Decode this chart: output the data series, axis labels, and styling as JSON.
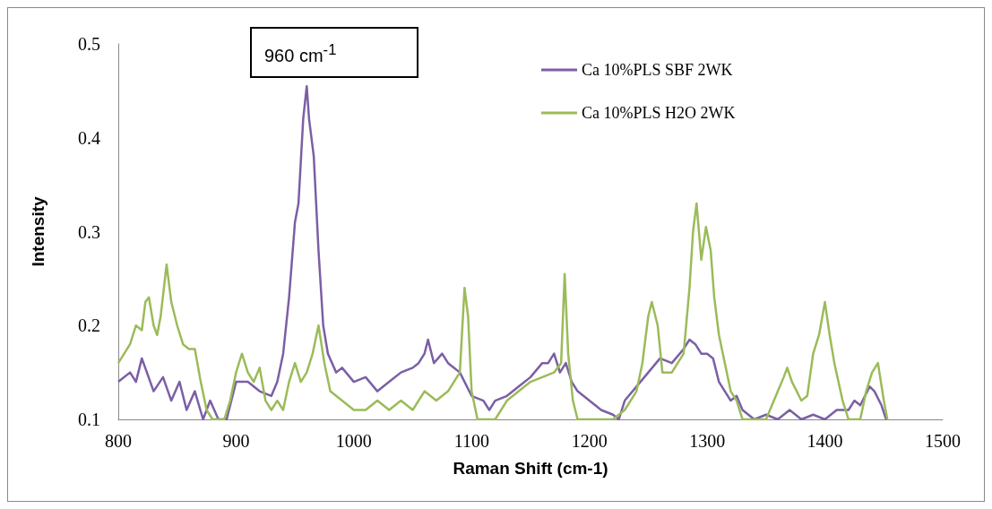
{
  "chart_data": {
    "type": "line",
    "xlabel": "Raman Shift (cm-1)",
    "ylabel": "Intensity",
    "xlim": [
      800,
      1500
    ],
    "xticks": [
      800,
      900,
      1000,
      1100,
      1200,
      1300,
      1400,
      1500
    ],
    "ylim": [
      0.1,
      0.5
    ],
    "yticks": [
      0.1,
      0.2,
      0.3,
      0.4,
      0.5
    ],
    "grid": false,
    "legend": "top right",
    "marker": "none",
    "line_style": "solid",
    "annotations": [
      "960 cm$^{-1}$"
    ],
    "series": [
      {
        "name": "Ca 10%PLS SBF 2WK",
        "color": "#7b5fa5",
        "x": [
          800,
          810,
          815,
          820,
          830,
          838,
          845,
          852,
          858,
          865,
          872,
          878,
          885,
          892,
          900,
          910,
          920,
          930,
          935,
          940,
          945,
          950,
          953,
          957,
          960,
          962,
          966,
          970,
          974,
          978,
          985,
          990,
          1000,
          1010,
          1020,
          1030,
          1040,
          1050,
          1055,
          1060,
          1063,
          1068,
          1075,
          1080,
          1090,
          1100,
          1110,
          1115,
          1120,
          1130,
          1140,
          1150,
          1160,
          1165,
          1170,
          1175,
          1180,
          1185,
          1190,
          1200,
          1210,
          1220,
          1225,
          1230,
          1240,
          1250,
          1260,
          1270,
          1280,
          1285,
          1290,
          1295,
          1300,
          1305,
          1310,
          1315,
          1320,
          1325,
          1330,
          1340,
          1350,
          1360,
          1370,
          1380,
          1390,
          1400,
          1410,
          1420,
          1425,
          1430,
          1438,
          1442,
          1448,
          1452
        ],
        "values": [
          0.14,
          0.15,
          0.14,
          0.165,
          0.13,
          0.145,
          0.12,
          0.14,
          0.11,
          0.13,
          0.1,
          0.12,
          0.1,
          0.1,
          0.14,
          0.14,
          0.13,
          0.125,
          0.14,
          0.17,
          0.23,
          0.31,
          0.33,
          0.42,
          0.455,
          0.42,
          0.38,
          0.28,
          0.2,
          0.17,
          0.15,
          0.155,
          0.14,
          0.145,
          0.13,
          0.14,
          0.15,
          0.155,
          0.16,
          0.17,
          0.185,
          0.16,
          0.17,
          0.16,
          0.15,
          0.125,
          0.12,
          0.11,
          0.12,
          0.125,
          0.135,
          0.145,
          0.16,
          0.16,
          0.17,
          0.15,
          0.16,
          0.14,
          0.13,
          0.12,
          0.11,
          0.105,
          0.1,
          0.12,
          0.135,
          0.15,
          0.165,
          0.16,
          0.175,
          0.185,
          0.18,
          0.17,
          0.17,
          0.165,
          0.14,
          0.13,
          0.12,
          0.125,
          0.11,
          0.1,
          0.105,
          0.1,
          0.11,
          0.1,
          0.105,
          0.1,
          0.11,
          0.11,
          0.12,
          0.115,
          0.135,
          0.13,
          0.115,
          0.1
        ]
      },
      {
        "name": "Ca 10%PLS H2O 2WK",
        "color": "#9bbb59",
        "x": [
          800,
          805,
          810,
          815,
          820,
          823,
          826,
          830,
          833,
          836,
          841,
          845,
          850,
          855,
          860,
          865,
          870,
          875,
          880,
          890,
          895,
          900,
          905,
          910,
          915,
          920,
          925,
          930,
          935,
          940,
          945,
          950,
          955,
          960,
          965,
          970,
          975,
          980,
          990,
          1000,
          1010,
          1020,
          1030,
          1040,
          1050,
          1060,
          1070,
          1080,
          1090,
          1094,
          1097,
          1100,
          1105,
          1120,
          1130,
          1140,
          1150,
          1160,
          1170,
          1176,
          1179,
          1182,
          1186,
          1190,
          1210,
          1220,
          1230,
          1240,
          1245,
          1250,
          1253,
          1258,
          1262,
          1270,
          1280,
          1285,
          1288,
          1291,
          1295,
          1299,
          1303,
          1306,
          1310,
          1315,
          1320,
          1325,
          1330,
          1340,
          1350,
          1360,
          1365,
          1368,
          1372,
          1380,
          1385,
          1390,
          1395,
          1400,
          1404,
          1408,
          1415,
          1420,
          1430,
          1435,
          1440,
          1445,
          1450,
          1453
        ],
        "values": [
          0.16,
          0.17,
          0.18,
          0.2,
          0.195,
          0.225,
          0.23,
          0.2,
          0.19,
          0.21,
          0.265,
          0.225,
          0.2,
          0.18,
          0.175,
          0.175,
          0.14,
          0.11,
          0.1,
          0.1,
          0.12,
          0.15,
          0.17,
          0.15,
          0.14,
          0.155,
          0.12,
          0.11,
          0.12,
          0.11,
          0.14,
          0.16,
          0.14,
          0.15,
          0.17,
          0.2,
          0.16,
          0.13,
          0.12,
          0.11,
          0.11,
          0.12,
          0.11,
          0.12,
          0.11,
          0.13,
          0.12,
          0.13,
          0.15,
          0.24,
          0.21,
          0.13,
          0.1,
          0.1,
          0.12,
          0.13,
          0.14,
          0.145,
          0.15,
          0.16,
          0.255,
          0.17,
          0.12,
          0.1,
          0.1,
          0.1,
          0.11,
          0.13,
          0.16,
          0.21,
          0.225,
          0.2,
          0.15,
          0.15,
          0.17,
          0.24,
          0.3,
          0.33,
          0.27,
          0.305,
          0.28,
          0.23,
          0.19,
          0.16,
          0.13,
          0.12,
          0.1,
          0.1,
          0.1,
          0.13,
          0.145,
          0.155,
          0.14,
          0.12,
          0.125,
          0.17,
          0.19,
          0.225,
          0.19,
          0.16,
          0.12,
          0.1,
          0.1,
          0.13,
          0.15,
          0.16,
          0.12,
          0.1
        ]
      }
    ]
  }
}
